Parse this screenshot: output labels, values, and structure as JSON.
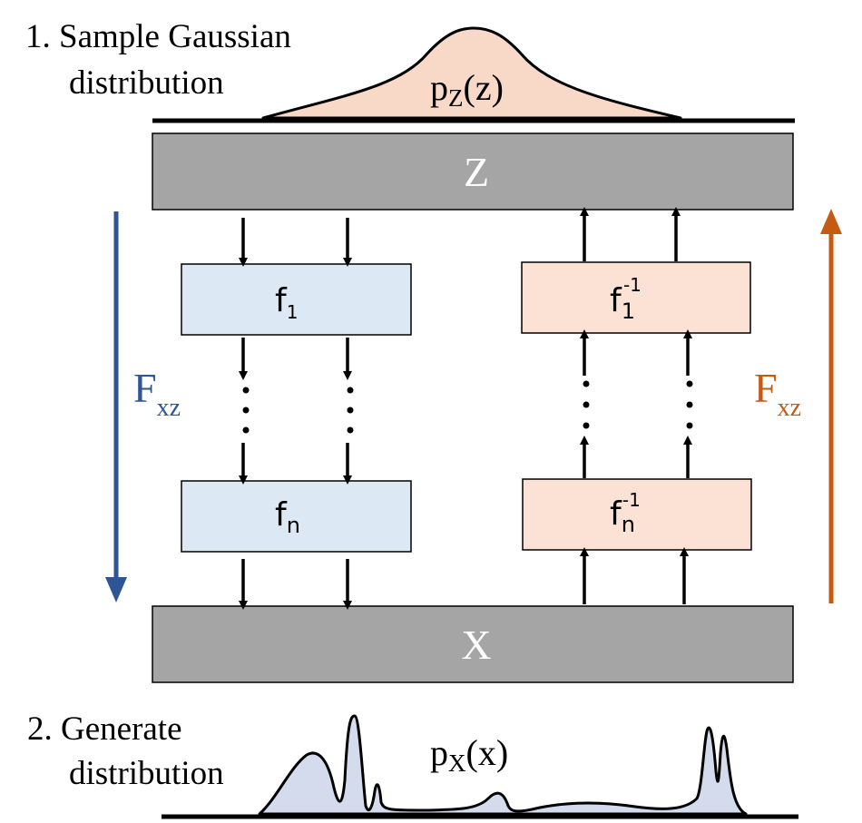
{
  "top_caption": {
    "line1": "1. Sample Gaussian",
    "line2": "distribution"
  },
  "bottom_caption": {
    "line1": "2. Generate",
    "line2": "distribution"
  },
  "pz_label": {
    "p": "p",
    "sub": "Z",
    "arg": "(z)"
  },
  "px_label": {
    "p": "p",
    "sub": "X",
    "arg": "(x)"
  },
  "z_bar": {
    "label": "Z"
  },
  "x_bar": {
    "label": "X"
  },
  "forward": {
    "f1": {
      "base": "f",
      "sub": "1"
    },
    "fn": {
      "base": "f",
      "sub": "n"
    }
  },
  "inverse": {
    "f1": {
      "base": "f",
      "sub": "1",
      "sup": "-1"
    },
    "fn": {
      "base": "f",
      "sub": "n",
      "sup": "-1"
    }
  },
  "left_arrow": {
    "base": "F",
    "sub": "xz"
  },
  "right_arrow": {
    "base": "F",
    "sub": "xz"
  },
  "colors": {
    "bar_gray": "#a5a5a5",
    "blue_fill": "#dce8f4",
    "orange_fill": "#fbe2d4",
    "blue_arrow": "#2f5597",
    "orange_arrow": "#c55a11",
    "gauss_fill": "#f8d9c8",
    "px_fill": "#d3dbec"
  }
}
